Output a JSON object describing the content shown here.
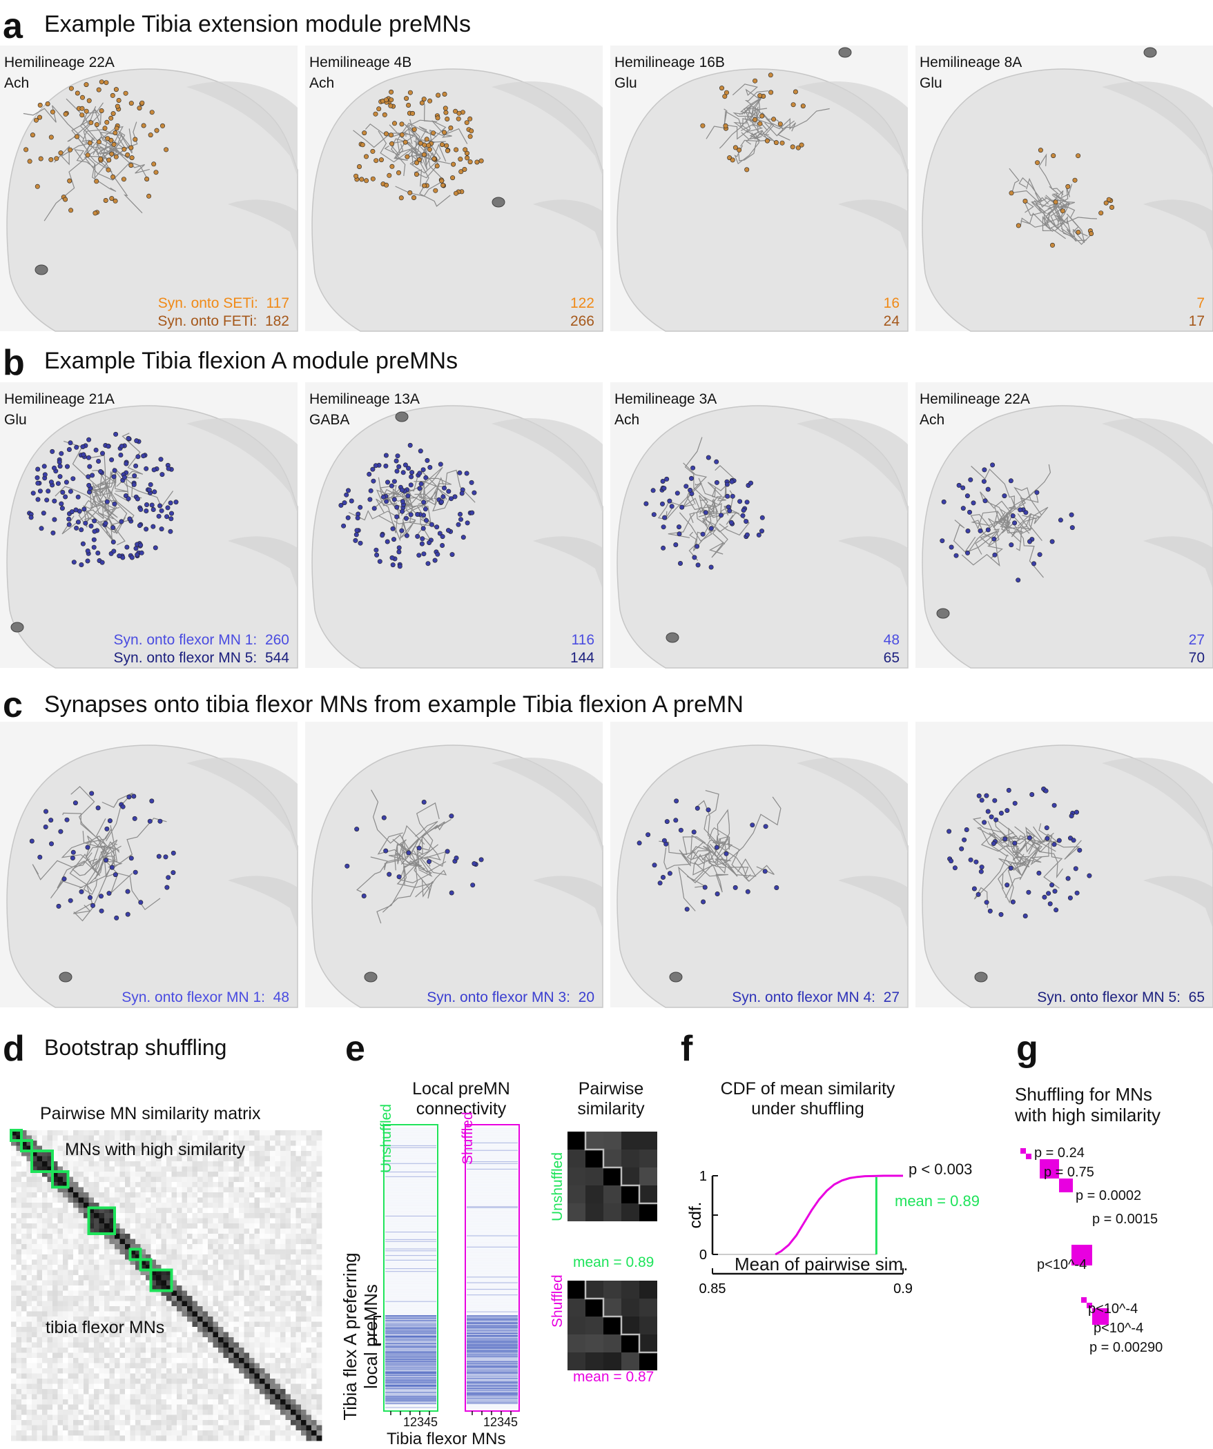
{
  "panel_a": {
    "label": "a",
    "title": "Example Tibia extension module preMNs",
    "count_labels": [
      "Syn. onto SETi:",
      "Syn. onto FETi:"
    ],
    "neurons": [
      {
        "hemilineage": "Hemilineage 22A",
        "transmitter": "Ach",
        "c1": "117",
        "c2": "182"
      },
      {
        "hemilineage": "Hemilineage 4B",
        "transmitter": "Ach",
        "c1": "122",
        "c2": "266"
      },
      {
        "hemilineage": "Hemilineage 16B",
        "transmitter": "Glu",
        "c1": "16",
        "c2": "24"
      },
      {
        "hemilineage": "Hemilineage 8A",
        "transmitter": "Glu",
        "c1": "7",
        "c2": "17"
      }
    ],
    "synapse_color": "#c8893c"
  },
  "panel_b": {
    "label": "b",
    "title": "Example Tibia flexion A module preMNs",
    "count_labels": [
      "Syn. onto flexor MN 1:",
      "Syn. onto flexor MN 5:"
    ],
    "neurons": [
      {
        "hemilineage": "Hemilineage 21A",
        "transmitter": "Glu",
        "c1": "260",
        "c2": "544"
      },
      {
        "hemilineage": "Hemilineage 13A",
        "transmitter": "GABA",
        "c1": "116",
        "c2": "144"
      },
      {
        "hemilineage": "Hemilineage 3A",
        "transmitter": "Ach",
        "c1": "48",
        "c2": "65"
      },
      {
        "hemilineage": "Hemilineage 22A",
        "transmitter": "Ach",
        "c1": "27",
        "c2": "70"
      }
    ],
    "synapse_color": "#3b3fa8"
  },
  "panel_c": {
    "label": "c",
    "title": "Synapses onto tibia flexor MNs from example Tibia flexion A preMN",
    "items": [
      {
        "label": "Syn. onto flexor MN 1:",
        "value": "48"
      },
      {
        "label": "Syn. onto flexor MN 3:",
        "value": "20"
      },
      {
        "label": "Syn. onto flexor MN 4:",
        "value": "27"
      },
      {
        "label": "Syn. onto flexor MN 5:",
        "value": "65"
      }
    ]
  },
  "panel_d": {
    "label": "d",
    "title": "Bootstrap shuffling",
    "matrix_title": "Pairwise MN similarity matrix",
    "annot_high": "MNs with high similarity",
    "annot_flexor": "tibia flexor MNs",
    "highlight_color": "#1ee35a"
  },
  "panel_e": {
    "label": "e",
    "conn_title": [
      "Local preMN",
      "connectivity"
    ],
    "sim_title": [
      "Pairwise",
      "similarity"
    ],
    "unshuffled": "Unshuffled",
    "shuffled": "Shuffled",
    "ylabel": [
      "Tibia flex A preferring",
      "local preMNs"
    ],
    "xlabel": "Tibia flexor MNs",
    "xticks": "12345",
    "mean_unshuffled": "mean = 0.89",
    "mean_shuffled": "mean = 0.87"
  },
  "panel_f": {
    "label": "f",
    "title": [
      "CDF of mean similarity",
      "under shuffling"
    ],
    "pvalue": "p < 0.003",
    "mean_label": "mean = 0.89",
    "chart_data": {
      "type": "line",
      "title": "CDF of mean similarity under shuffling",
      "xlabel": "Mean of pairwise sim.",
      "ylabel": "cdf.",
      "xlim": [
        0.85,
        0.9
      ],
      "ylim": [
        0,
        1
      ],
      "xticks": [
        "0.85",
        "0.9"
      ],
      "yticks": [
        "0",
        "1"
      ],
      "series": [
        {
          "x": [
            0.8665,
            0.868,
            0.87,
            0.872,
            0.874,
            0.876,
            0.878,
            0.88,
            0.882,
            0.884,
            0.886,
            0.888,
            0.89,
            0.895,
            0.9
          ],
          "y": [
            0,
            0.04,
            0.12,
            0.24,
            0.4,
            0.56,
            0.7,
            0.81,
            0.89,
            0.94,
            0.97,
            0.985,
            0.995,
            1.0,
            1.0
          ],
          "color": "#e800e0"
        }
      ],
      "observed_mean": 0.893,
      "observed_color": "#1ee35a"
    }
  },
  "panel_g": {
    "label": "g",
    "title": [
      "Shuffling for MNs",
      "with high similarity"
    ],
    "pvalues": [
      "p = 0.24",
      "p = 0.75",
      "p = 0.0002",
      "p = 0.0015",
      "p<10^-4",
      "p<10^-4",
      "p<10^-4",
      "p = 0.00290"
    ],
    "block_color": "#e800e0"
  }
}
